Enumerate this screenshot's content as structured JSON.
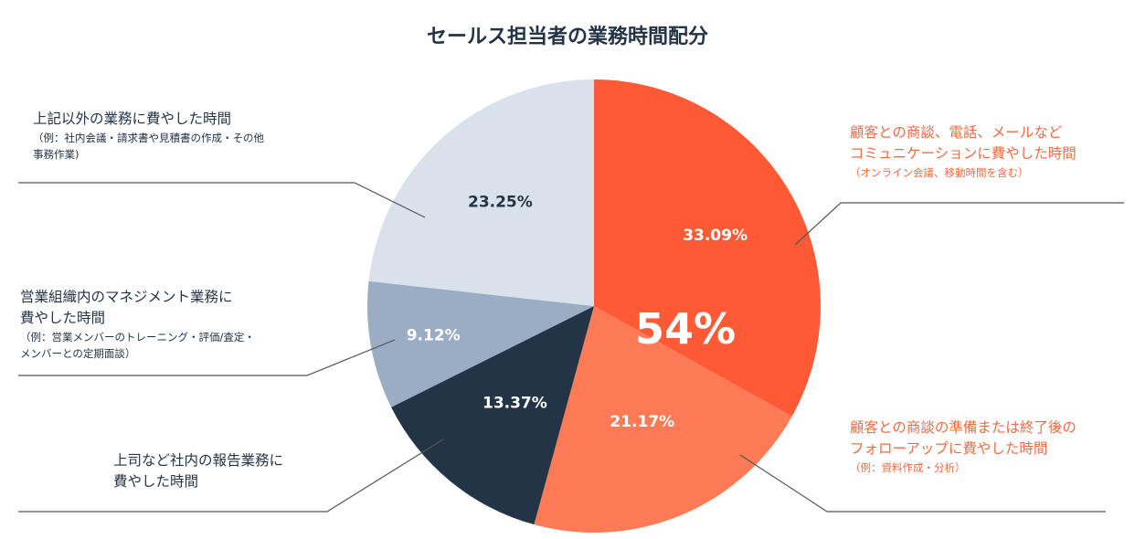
{
  "chart_data": {
    "type": "pie",
    "title": "セールス担当者の業務時間配分",
    "start_angle_deg": 0,
    "direction": "clockwise",
    "slices": [
      {
        "id": "customer-communication",
        "value": 33.09,
        "label": "33.09%",
        "color": "#ff5a36",
        "label_color": "#ffffff"
      },
      {
        "id": "meeting-prep-followup",
        "value": 21.17,
        "label": "21.17%",
        "color": "#ff7a55",
        "label_color": "#ffffff"
      },
      {
        "id": "reporting",
        "value": 13.37,
        "label": "13.37%",
        "color": "#243447",
        "label_color": "#ffffff"
      },
      {
        "id": "management",
        "value": 9.12,
        "label": "9.12%",
        "color": "#9aadc4",
        "label_color": "#ffffff"
      },
      {
        "id": "other-tasks",
        "value": 23.25,
        "label": "23.25%",
        "color": "#d9e2ea",
        "label_color": "#243447"
      }
    ],
    "highlight": {
      "text": "54%",
      "note": "sum of the two orange slices"
    },
    "annotations": [
      {
        "slice": "customer-communication",
        "side": "right",
        "tone": "orange",
        "lines": [
          "顧客との商談、電話、メールなど",
          "コミュニケーションに費やした時間"
        ],
        "sub_lines": [
          "（オンライン会議、移動時間を含む）"
        ]
      },
      {
        "slice": "meeting-prep-followup",
        "side": "right",
        "tone": "orange",
        "lines": [
          "顧客との商談の準備または終了後の",
          "フォローアップに費やした時間"
        ],
        "sub_lines": [
          "（例：資料作成・分析）"
        ]
      },
      {
        "slice": "reporting",
        "side": "left",
        "tone": "dark",
        "lines": [
          "上司など社内の報告業務に",
          "費やした時間"
        ],
        "sub_lines": []
      },
      {
        "slice": "management",
        "side": "left",
        "tone": "dark",
        "lines": [
          "営業組織内のマネジメント業務に",
          "費やした時間"
        ],
        "sub_lines": [
          "（例：営業メンバーのトレーニング・評価/査定・",
          "メンバーとの定期面談）"
        ]
      },
      {
        "slice": "other-tasks",
        "side": "left",
        "tone": "dark",
        "lines": [
          "上記以外の業務に費やした時間"
        ],
        "sub_lines": [
          "（例：社内会議・請求書や見積書の作成・その他",
          "事務作業)"
        ]
      }
    ]
  }
}
